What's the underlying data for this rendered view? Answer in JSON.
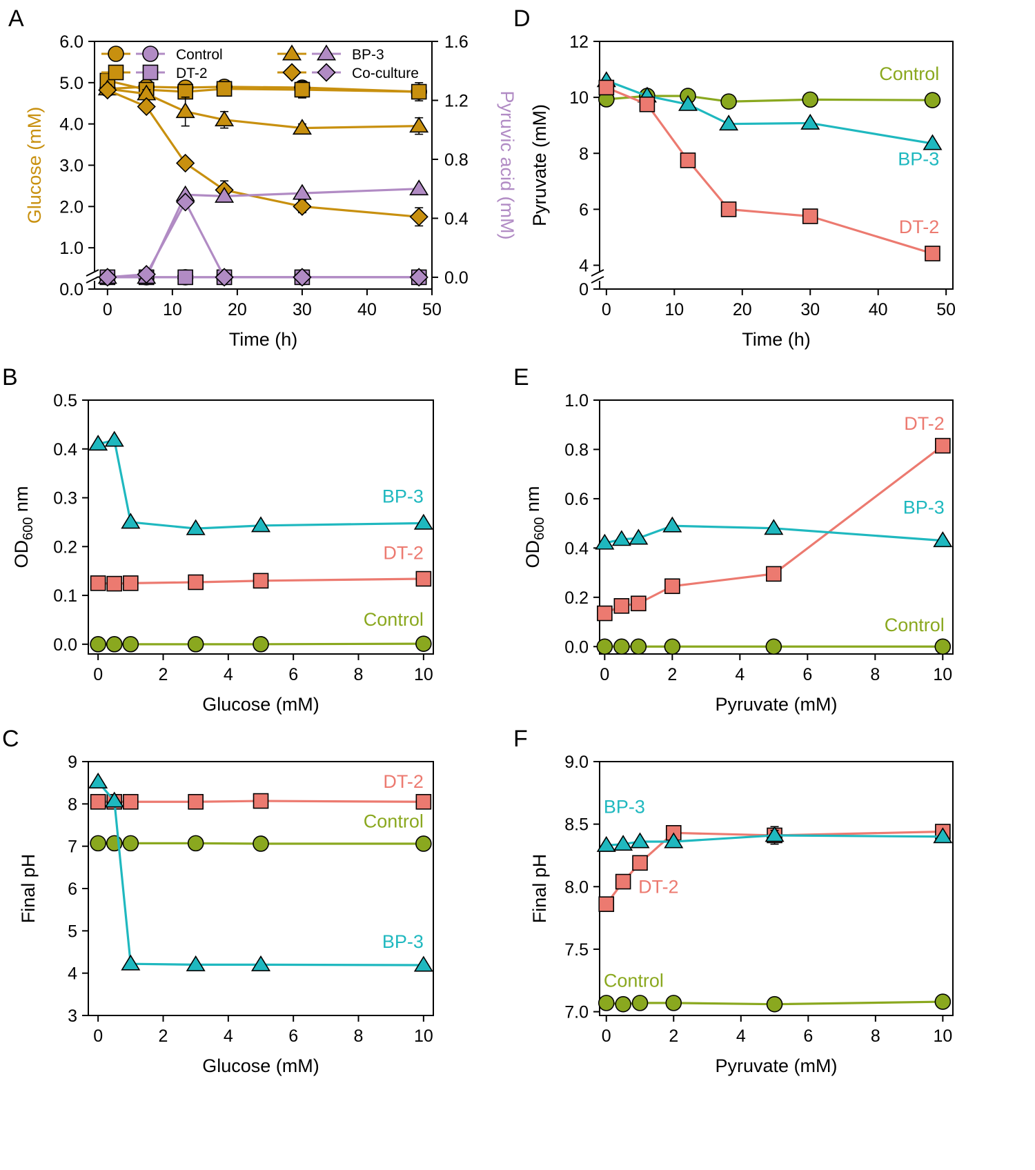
{
  "colors": {
    "glucose": "#c8900f",
    "pyruvic": "#b18bc4",
    "control": "#8aa81f",
    "bp3": "#1fb8bf",
    "dt2": "#ec7a70",
    "axis": "#000000"
  },
  "chart_data": [
    {
      "id": "A",
      "panel_label": "A",
      "type": "line",
      "xlabel": "Time (h)",
      "ylabel": "Glucose (mM)",
      "y2label": "Pyruvic acid (mM)",
      "xlim": [
        -2,
        50
      ],
      "ylim": [
        0,
        6
      ],
      "y2lim": [
        -0.08,
        1.6
      ],
      "xticks": [
        "0",
        "10",
        "20",
        "30",
        "40",
        "50"
      ],
      "xtick_values": [
        0,
        10,
        20,
        30,
        40,
        50
      ],
      "yticks": [
        "0.0",
        "1.0",
        "2.0",
        "3.0",
        "4.0",
        "5.0",
        "6.0"
      ],
      "ytick_values": [
        0,
        1,
        2,
        3,
        4,
        5,
        6
      ],
      "y2ticks": [
        "0.0",
        "0.4",
        "0.8",
        "1.2",
        "1.6"
      ],
      "y2tick_values": [
        0,
        0.4,
        0.8,
        1.2,
        1.6
      ],
      "axis_break": true,
      "legend_position": "top",
      "legend": [
        {
          "label": "Control",
          "marker": "circle"
        },
        {
          "label": "DT-2",
          "marker": "square"
        },
        {
          "label": "BP-3",
          "marker": "triangle"
        },
        {
          "label": "Co-culture",
          "marker": "diamond"
        }
      ],
      "x": [
        0,
        6,
        12,
        18,
        30,
        48
      ],
      "series": [
        {
          "name": "Control",
          "axis": "left",
          "color_key": "glucose",
          "marker": "circle",
          "values": [
            4.85,
            4.9,
            4.88,
            4.9,
            4.88,
            4.78
          ],
          "errors": [
            0.1,
            0.1,
            0.12,
            0.08,
            0.1,
            0.12
          ]
        },
        {
          "name": "DT-2",
          "axis": "left",
          "color_key": "glucose",
          "marker": "square",
          "values": [
            5.05,
            4.83,
            4.78,
            4.85,
            4.83,
            4.78
          ],
          "errors": [
            0.1,
            0.12,
            0.12,
            0.1,
            0.2,
            0.22
          ]
        },
        {
          "name": "BP-3",
          "axis": "left",
          "color_key": "glucose",
          "marker": "triangle",
          "values": [
            4.85,
            4.73,
            4.3,
            4.1,
            3.9,
            3.95
          ],
          "errors": [
            0.1,
            0.1,
            0.35,
            0.2,
            0.1,
            0.2
          ]
        },
        {
          "name": "Co-culture",
          "axis": "left",
          "color_key": "glucose",
          "marker": "diamond",
          "values": [
            4.82,
            4.42,
            3.05,
            2.4,
            2.0,
            1.75
          ],
          "errors": [
            0.1,
            0.08,
            0.1,
            0.22,
            0.15,
            0.22
          ]
        },
        {
          "name": "Control",
          "axis": "right",
          "color_key": "pyruvic",
          "marker": "circle",
          "values": [
            0.0,
            0.0,
            0.0,
            0.0,
            0.0,
            0.0
          ],
          "errors": [
            0,
            0,
            0,
            0,
            0,
            0
          ]
        },
        {
          "name": "DT-2",
          "axis": "right",
          "color_key": "pyruvic",
          "marker": "square",
          "values": [
            0.0,
            0.0,
            0.0,
            0.0,
            0.0,
            0.0
          ],
          "errors": [
            0,
            0,
            0,
            0,
            0,
            0
          ]
        },
        {
          "name": "BP-3",
          "axis": "right",
          "color_key": "pyruvic",
          "marker": "triangle",
          "values": [
            0.0,
            0.0,
            0.56,
            0.55,
            0.57,
            0.6
          ],
          "errors": [
            0,
            0,
            0,
            0,
            0,
            0
          ]
        },
        {
          "name": "Co-culture",
          "axis": "right",
          "color_key": "pyruvic",
          "marker": "diamond",
          "values": [
            0.0,
            0.02,
            0.51,
            0.0,
            0.0,
            0.0
          ],
          "errors": [
            0,
            0,
            0,
            0,
            0,
            0
          ]
        }
      ],
      "series_labels": []
    },
    {
      "id": "B",
      "panel_label": "B",
      "type": "line",
      "xlabel": "Glucose (mM)",
      "ylabel": "OD",
      "ylabel_sub": "600",
      "ylabel_tail": " nm",
      "xlim": [
        -0.3,
        10.3
      ],
      "ylim": [
        -0.02,
        0.5
      ],
      "xticks": [
        "0",
        "2",
        "4",
        "6",
        "8",
        "10"
      ],
      "xtick_values": [
        0,
        2,
        4,
        6,
        8,
        10
      ],
      "yticks": [
        "0.0",
        "0.1",
        "0.2",
        "0.3",
        "0.4",
        "0.5"
      ],
      "ytick_values": [
        0,
        0.1,
        0.2,
        0.3,
        0.4,
        0.5
      ],
      "x": [
        0,
        0.5,
        1,
        3,
        5,
        10
      ],
      "series": [
        {
          "name": "BP-3",
          "color_key": "bp3",
          "marker": "triangle",
          "values": [
            0.41,
            0.418,
            0.25,
            0.237,
            0.243,
            0.248
          ]
        },
        {
          "name": "DT-2",
          "color_key": "dt2",
          "marker": "square",
          "values": [
            0.125,
            0.124,
            0.125,
            0.127,
            0.13,
            0.134
          ]
        },
        {
          "name": "Control",
          "color_key": "control",
          "marker": "circle",
          "values": [
            0.0,
            0.0,
            0.0,
            0.0,
            0.0,
            0.001
          ]
        }
      ],
      "series_labels": [
        {
          "text": "BP-3",
          "color_key": "bp3",
          "anchor": "end",
          "at": [
            10,
            0.29
          ]
        },
        {
          "text": "DT-2",
          "color_key": "dt2",
          "anchor": "end",
          "at": [
            10,
            0.174
          ]
        },
        {
          "text": "Control",
          "color_key": "control",
          "anchor": "end",
          "at": [
            10,
            0.038
          ]
        }
      ]
    },
    {
      "id": "C",
      "panel_label": "C",
      "type": "line",
      "xlabel": "Glucose (mM)",
      "ylabel": "Final pH",
      "xlim": [
        -0.3,
        10.3
      ],
      "ylim": [
        3,
        9
      ],
      "xticks": [
        "0",
        "2",
        "4",
        "6",
        "8",
        "10"
      ],
      "xtick_values": [
        0,
        2,
        4,
        6,
        8,
        10
      ],
      "yticks": [
        "3",
        "4",
        "5",
        "6",
        "7",
        "8",
        "9"
      ],
      "ytick_values": [
        3,
        4,
        5,
        6,
        7,
        8,
        9
      ],
      "x": [
        0,
        0.5,
        1,
        3,
        5,
        10
      ],
      "series": [
        {
          "name": "DT-2",
          "color_key": "dt2",
          "marker": "square",
          "values": [
            8.05,
            8.05,
            8.05,
            8.05,
            8.07,
            8.05
          ]
        },
        {
          "name": "Control",
          "color_key": "control",
          "marker": "circle",
          "values": [
            7.07,
            7.07,
            7.07,
            7.07,
            7.06,
            7.06
          ]
        },
        {
          "name": "BP-3",
          "color_key": "bp3",
          "marker": "triangle",
          "values": [
            8.52,
            8.07,
            4.22,
            4.2,
            4.2,
            4.19
          ]
        }
      ],
      "series_labels": [
        {
          "text": "DT-2",
          "color_key": "dt2",
          "anchor": "end",
          "at": [
            10,
            8.38
          ]
        },
        {
          "text": "Control",
          "color_key": "control",
          "anchor": "end",
          "at": [
            10,
            7.44
          ]
        },
        {
          "text": "BP-3",
          "color_key": "bp3",
          "anchor": "end",
          "at": [
            10,
            4.6
          ]
        }
      ]
    },
    {
      "id": "D",
      "panel_label": "D",
      "type": "line",
      "xlabel": "Time (h)",
      "ylabel": "Pyruvate (mM)",
      "xlim": [
        -1,
        51
      ],
      "ylim": [
        3.15,
        12
      ],
      "xticks": [
        "0",
        "10",
        "20",
        "30",
        "40",
        "50"
      ],
      "xtick_values": [
        0,
        10,
        20,
        30,
        40,
        50
      ],
      "yticks": [
        "0",
        "4",
        "6",
        "8",
        "10",
        "12"
      ],
      "ytick_values": [
        3.15,
        4,
        6,
        8,
        10,
        12
      ],
      "axis_break": true,
      "x": [
        0,
        6,
        12,
        18,
        30,
        48
      ],
      "series": [
        {
          "name": "Control",
          "color_key": "control",
          "marker": "circle",
          "values": [
            9.93,
            10.05,
            10.05,
            9.85,
            9.92,
            9.9
          ]
        },
        {
          "name": "BP-3",
          "color_key": "bp3",
          "marker": "triangle",
          "values": [
            10.6,
            10.05,
            9.75,
            9.05,
            9.08,
            8.35
          ]
        },
        {
          "name": "DT-2",
          "color_key": "dt2",
          "marker": "square",
          "values": [
            10.35,
            9.75,
            7.75,
            6.0,
            5.75,
            4.42
          ]
        }
      ],
      "series_labels": [
        {
          "text": "Control",
          "color_key": "control",
          "anchor": "end",
          "at": [
            49,
            10.62
          ]
        },
        {
          "text": "BP-3",
          "color_key": "bp3",
          "anchor": "end",
          "at": [
            49,
            7.58
          ]
        },
        {
          "text": "DT-2",
          "color_key": "dt2",
          "anchor": "end",
          "at": [
            49,
            5.15
          ]
        }
      ]
    },
    {
      "id": "E",
      "panel_label": "E",
      "type": "line",
      "xlabel": "Pyruvate (mM)",
      "ylabel": "OD",
      "ylabel_sub": "600",
      "ylabel_tail": " nm",
      "xlim": [
        -0.15,
        10.3
      ],
      "ylim": [
        -0.03,
        1.0
      ],
      "xticks": [
        "0",
        "2",
        "4",
        "6",
        "8",
        "10"
      ],
      "xtick_values": [
        0,
        2,
        4,
        6,
        8,
        10
      ],
      "yticks": [
        "0.0",
        "0.2",
        "0.4",
        "0.6",
        "0.8",
        "1.0"
      ],
      "ytick_values": [
        0,
        0.2,
        0.4,
        0.6,
        0.8,
        1.0
      ],
      "x": [
        0,
        0.5,
        1,
        2,
        5,
        10
      ],
      "series": [
        {
          "name": "DT-2",
          "color_key": "dt2",
          "marker": "square",
          "values": [
            0.135,
            0.165,
            0.175,
            0.245,
            0.295,
            0.815
          ]
        },
        {
          "name": "BP-3",
          "color_key": "bp3",
          "marker": "triangle",
          "values": [
            0.42,
            0.435,
            0.44,
            0.49,
            0.48,
            0.43
          ]
        },
        {
          "name": "Control",
          "color_key": "control",
          "marker": "circle",
          "values": [
            0.0,
            0.0,
            0.0,
            0.0,
            0.0,
            0.0
          ]
        }
      ],
      "series_labels": [
        {
          "text": "DT-2",
          "color_key": "dt2",
          "anchor": "end",
          "at": [
            10.05,
            0.88
          ]
        },
        {
          "text": "BP-3",
          "color_key": "bp3",
          "anchor": "end",
          "at": [
            10.05,
            0.54
          ]
        },
        {
          "text": "Control",
          "color_key": "control",
          "anchor": "end",
          "at": [
            10.05,
            0.062
          ]
        }
      ]
    },
    {
      "id": "F",
      "panel_label": "F",
      "type": "line",
      "xlabel": "Pyruvate (mM)",
      "ylabel": "Final pH",
      "xlim": [
        -0.2,
        10.3
      ],
      "ylim": [
        6.97,
        9.0
      ],
      "xticks": [
        "0",
        "2",
        "4",
        "6",
        "8",
        "10"
      ],
      "xtick_values": [
        0,
        2,
        4,
        6,
        8,
        10
      ],
      "yticks": [
        "7.0",
        "7.5",
        "8.0",
        "8.5",
        "9.0"
      ],
      "ytick_values": [
        7.0,
        7.5,
        8.0,
        8.5,
        9.0
      ],
      "x": [
        0,
        0.5,
        1,
        2,
        5,
        10
      ],
      "series": [
        {
          "name": "DT-2",
          "color_key": "dt2",
          "marker": "square",
          "values": [
            7.86,
            8.04,
            8.19,
            8.43,
            8.41,
            8.44
          ],
          "errors": [
            0,
            0,
            0,
            0,
            0.07,
            0
          ]
        },
        {
          "name": "BP-3",
          "color_key": "bp3",
          "marker": "triangle",
          "values": [
            8.33,
            8.34,
            8.36,
            8.36,
            8.41,
            8.4
          ],
          "errors": [
            0,
            0,
            0,
            0,
            0.04,
            0
          ]
        },
        {
          "name": "Control",
          "color_key": "control",
          "marker": "circle",
          "values": [
            7.07,
            7.06,
            7.07,
            7.07,
            7.06,
            7.08
          ],
          "errors": [
            0,
            0,
            0,
            0,
            0,
            0
          ]
        }
      ],
      "series_labels": [
        {
          "text": "BP-3",
          "color_key": "bp3",
          "anchor": "start",
          "at": [
            -0.08,
            8.59
          ]
        },
        {
          "text": "DT-2",
          "color_key": "dt2",
          "anchor": "start",
          "at": [
            0.95,
            7.95
          ]
        },
        {
          "text": "Control",
          "color_key": "control",
          "anchor": "start",
          "at": [
            -0.08,
            7.2
          ]
        }
      ]
    }
  ]
}
